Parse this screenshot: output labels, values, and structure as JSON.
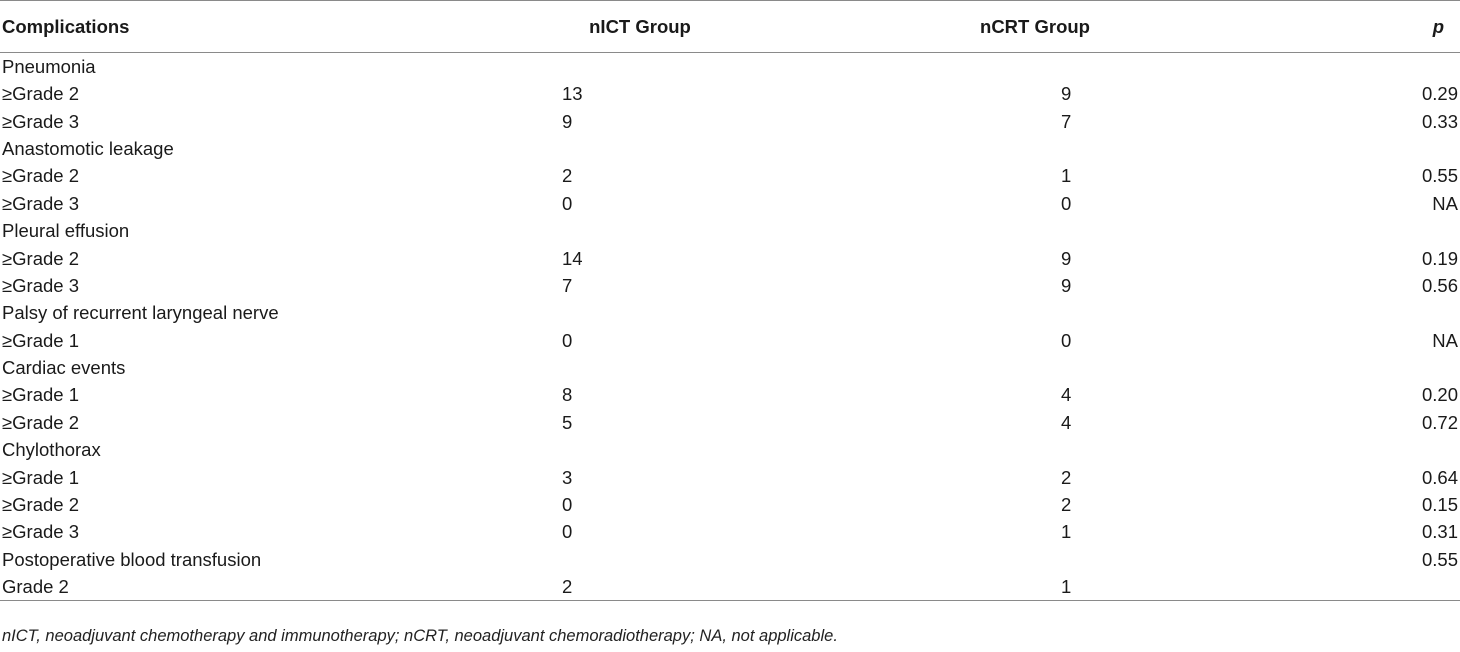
{
  "header": {
    "col1": "Complications",
    "col2": "nICT Group",
    "col3": "nCRT Group",
    "col4": "p"
  },
  "rows": [
    {
      "label": "Pneumonia",
      "nict": "",
      "ncrt": "",
      "p": ""
    },
    {
      "label": "≥Grade 2",
      "nict": "13",
      "ncrt": "9",
      "p": "0.29"
    },
    {
      "label": "≥Grade 3",
      "nict": "9",
      "ncrt": "7",
      "p": "0.33"
    },
    {
      "label": "Anastomotic leakage",
      "nict": "",
      "ncrt": "",
      "p": ""
    },
    {
      "label": "≥Grade 2",
      "nict": "2",
      "ncrt": "1",
      "p": "0.55"
    },
    {
      "label": "≥Grade 3",
      "nict": "0",
      "ncrt": "0",
      "p": "NA"
    },
    {
      "label": "Pleural effusion",
      "nict": "",
      "ncrt": "",
      "p": ""
    },
    {
      "label": "≥Grade 2",
      "nict": "14",
      "ncrt": "9",
      "p": "0.19"
    },
    {
      "label": "≥Grade 3",
      "nict": "7",
      "ncrt": "9",
      "p": "0.56"
    },
    {
      "label": "Palsy of recurrent laryngeal nerve",
      "nict": "",
      "ncrt": "",
      "p": ""
    },
    {
      "label": "≥Grade 1",
      "nict": "0",
      "ncrt": "0",
      "p": "NA"
    },
    {
      "label": "Cardiac events",
      "nict": "",
      "ncrt": "",
      "p": ""
    },
    {
      "label": "≥Grade 1",
      "nict": "8",
      "ncrt": "4",
      "p": "0.20"
    },
    {
      "label": "≥Grade 2",
      "nict": "5",
      "ncrt": "4",
      "p": "0.72"
    },
    {
      "label": "Chylothorax",
      "nict": "",
      "ncrt": "",
      "p": ""
    },
    {
      "label": "≥Grade 1",
      "nict": "3",
      "ncrt": "2",
      "p": "0.64"
    },
    {
      "label": "≥Grade 2",
      "nict": "0",
      "ncrt": "2",
      "p": "0.15"
    },
    {
      "label": "≥Grade 3",
      "nict": "0",
      "ncrt": "1",
      "p": "0.31"
    },
    {
      "label": "Postoperative blood transfusion",
      "nict": "",
      "ncrt": "",
      "p": "0.55"
    },
    {
      "label": "Grade 2",
      "nict": "2",
      "ncrt": "1",
      "p": ""
    }
  ],
  "footnote": "nICT, neoadjuvant chemotherapy and immunotherapy; nCRT, neoadjuvant chemoradiotherapy; NA, not applicable."
}
